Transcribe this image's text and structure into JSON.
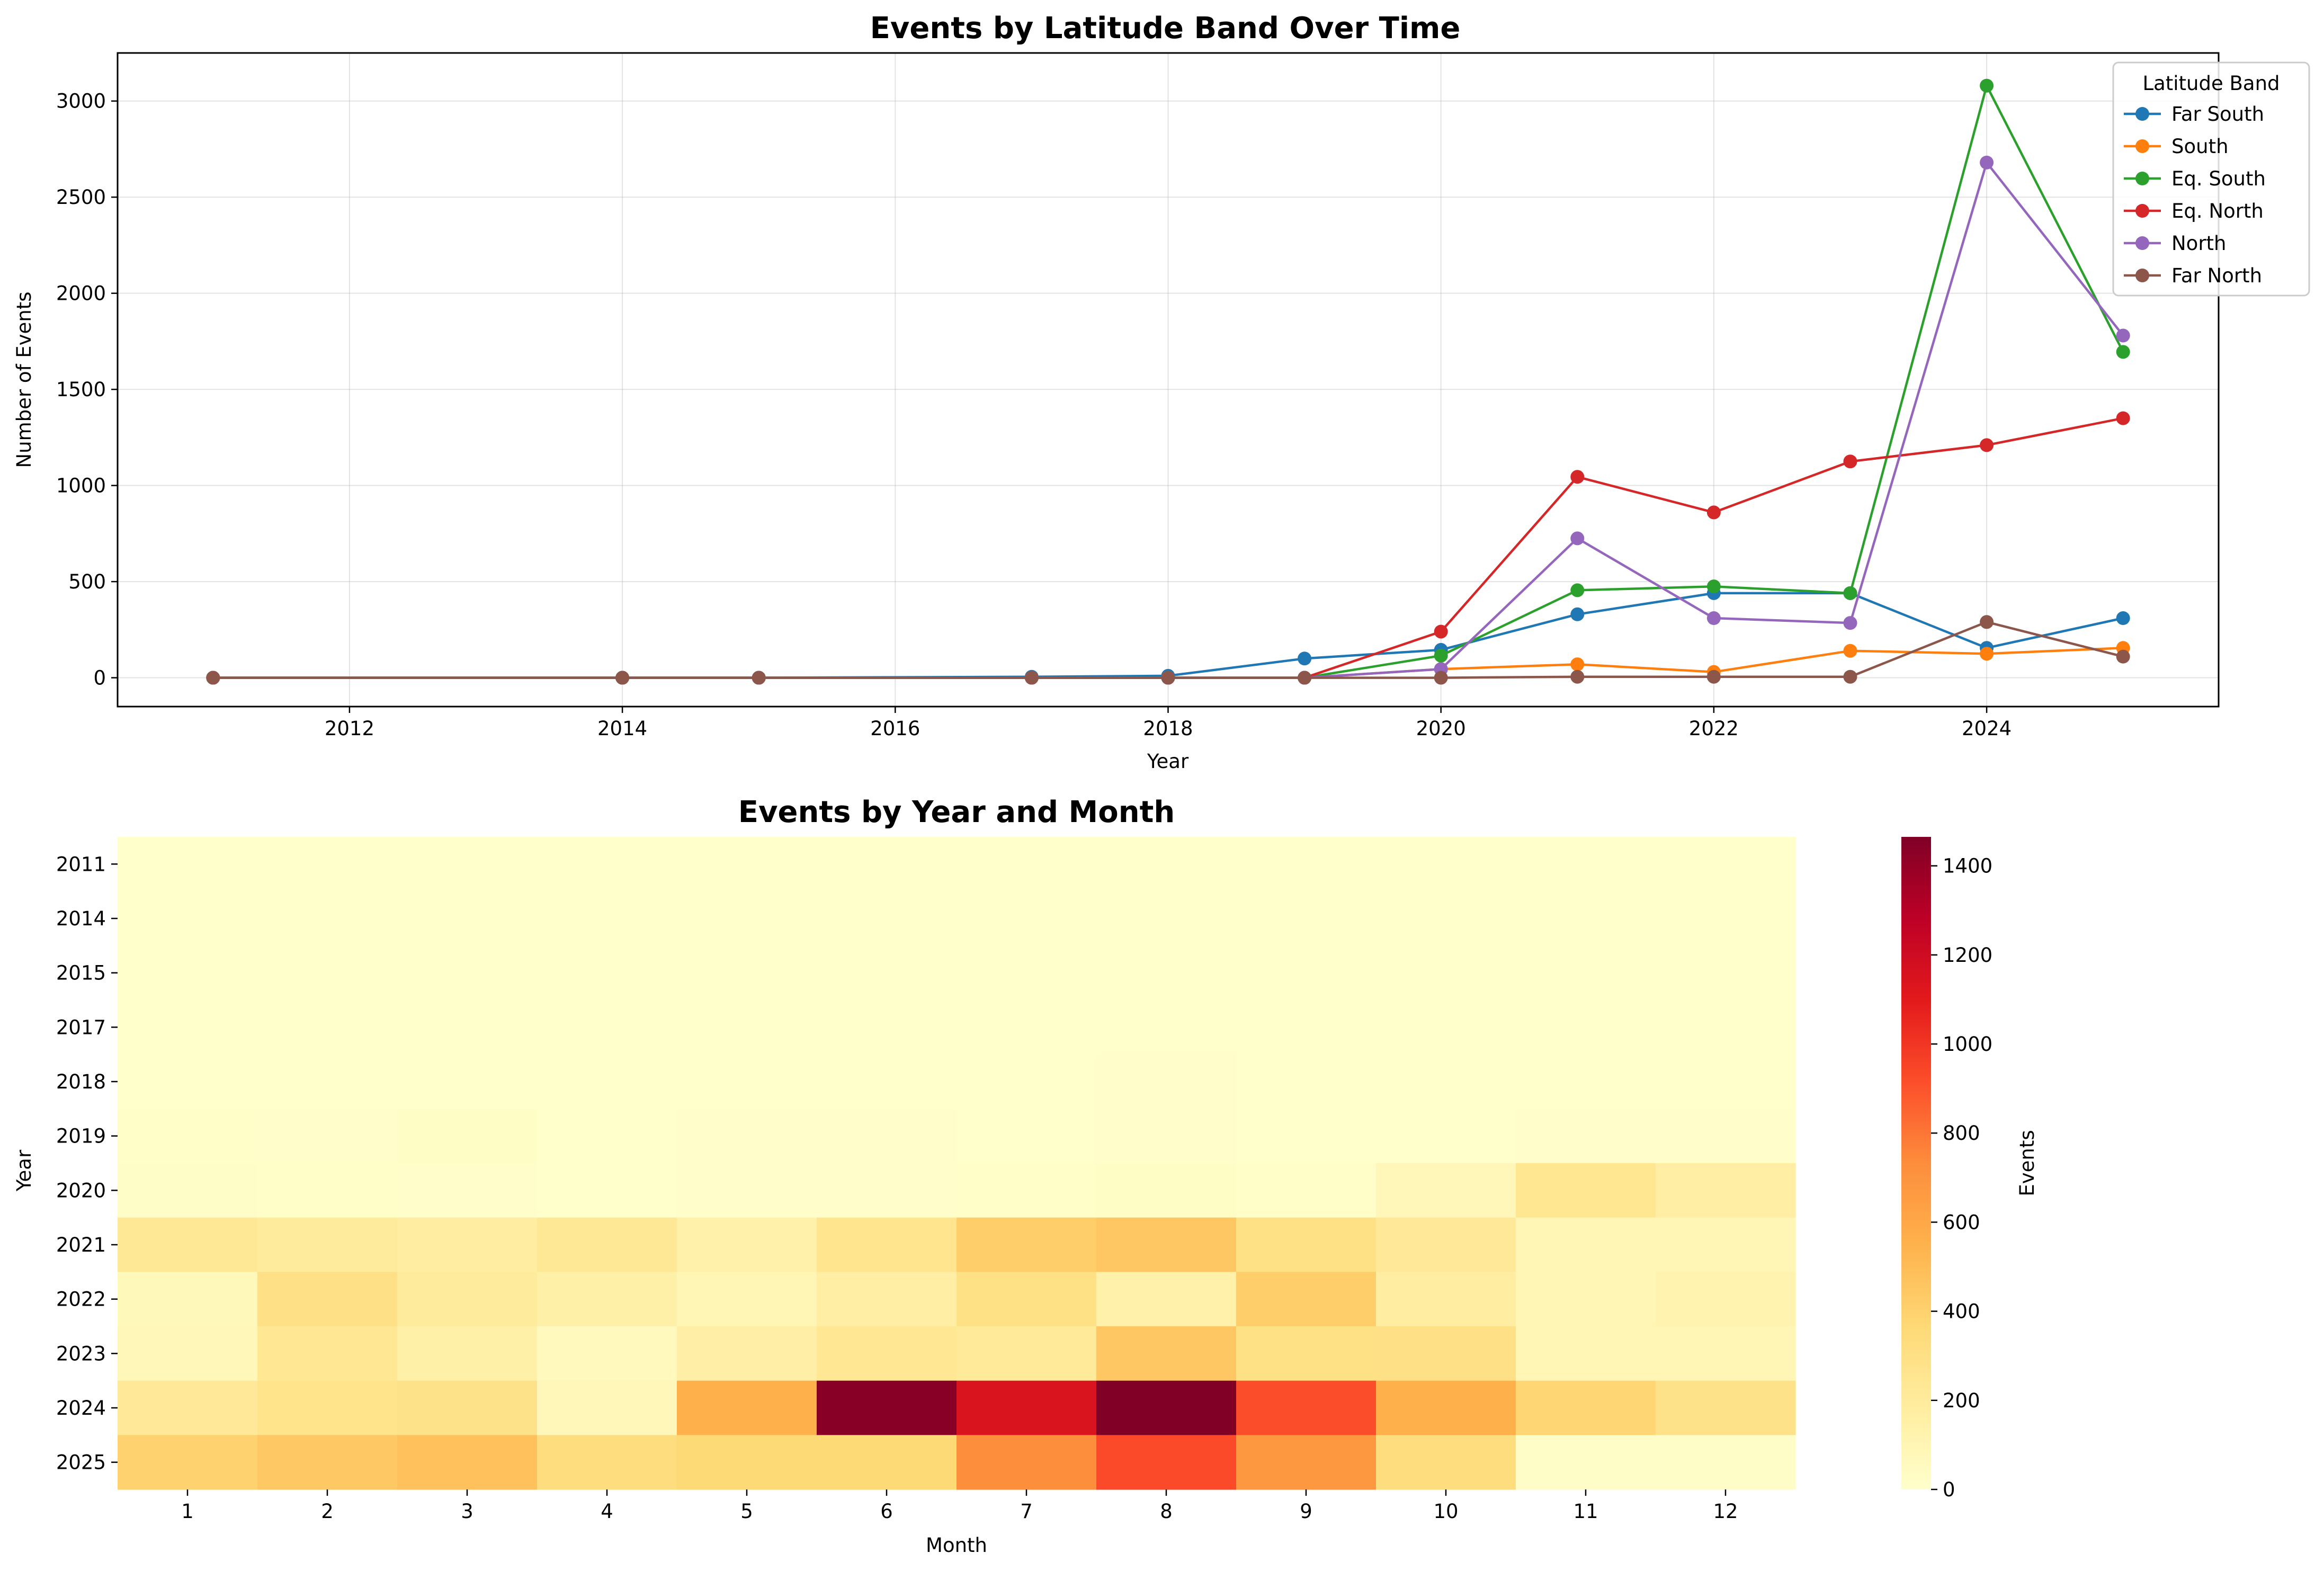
{
  "chart_data": [
    {
      "type": "line",
      "title": "Events by Latitude Band Over Time",
      "xlabel": "Year",
      "ylabel": "Number of Events",
      "xlim": [
        2010.3,
        2025.7
      ],
      "ylim": [
        -150,
        3250
      ],
      "xticks": [
        2012,
        2014,
        2016,
        2018,
        2020,
        2022,
        2024
      ],
      "yticks": [
        0,
        500,
        1000,
        1500,
        2000,
        2500,
        3000
      ],
      "grid": true,
      "legend": {
        "title": "Latitude Band",
        "placement": "top-right"
      },
      "x": [
        2011,
        2014,
        2015,
        2017,
        2018,
        2019,
        2020,
        2021,
        2022,
        2023,
        2024,
        2025
      ],
      "series": [
        {
          "name": "Far South",
          "color": "#1f77b4",
          "values": [
            0,
            0,
            0,
            5,
            10,
            100,
            145,
            330,
            440,
            440,
            155,
            310
          ]
        },
        {
          "name": "South",
          "color": "#ff7f0e",
          "values": [
            0,
            0,
            0,
            0,
            0,
            0,
            45,
            70,
            30,
            140,
            125,
            155
          ]
        },
        {
          "name": "Eq. South",
          "color": "#2ca02c",
          "values": [
            0,
            0,
            0,
            0,
            0,
            0,
            115,
            455,
            475,
            440,
            3080,
            1695
          ]
        },
        {
          "name": "Eq. North",
          "color": "#d62728",
          "values": [
            0,
            0,
            0,
            0,
            0,
            0,
            240,
            1045,
            860,
            1125,
            1210,
            1350
          ]
        },
        {
          "name": "North",
          "color": "#9467bd",
          "values": [
            0,
            0,
            0,
            0,
            0,
            0,
            45,
            725,
            310,
            285,
            2680,
            1780
          ]
        },
        {
          "name": "Far North",
          "color": "#8c564b",
          "values": [
            0,
            0,
            0,
            0,
            0,
            0,
            0,
            5,
            5,
            5,
            290,
            110
          ]
        }
      ]
    },
    {
      "type": "heatmap",
      "title": "Events by Year and Month",
      "xlabel": "Month",
      "ylabel": "Year",
      "x": [
        "1",
        "2",
        "3",
        "4",
        "5",
        "6",
        "7",
        "8",
        "9",
        "10",
        "11",
        "12"
      ],
      "y": [
        "2011",
        "2014",
        "2015",
        "2017",
        "2018",
        "2019",
        "2020",
        "2021",
        "2022",
        "2023",
        "2024",
        "2025"
      ],
      "colorbar": {
        "label": "Events",
        "min": 0,
        "max": 1465,
        "ticks": [
          0,
          200,
          400,
          600,
          800,
          1000,
          1200,
          1400
        ]
      },
      "values": [
        [
          1,
          0,
          0,
          0,
          0,
          0,
          0,
          0,
          0,
          0,
          0,
          0
        ],
        [
          0,
          0,
          0,
          0,
          0,
          0,
          0,
          0,
          0,
          0,
          0,
          0
        ],
        [
          0,
          0,
          0,
          0,
          0,
          0,
          0,
          0,
          0,
          0,
          0,
          0
        ],
        [
          0,
          0,
          0,
          0,
          0,
          0,
          0,
          5,
          0,
          0,
          0,
          0
        ],
        [
          0,
          0,
          0,
          0,
          0,
          0,
          0,
          10,
          0,
          0,
          0,
          0
        ],
        [
          15,
          10,
          25,
          5,
          10,
          10,
          5,
          10,
          5,
          5,
          10,
          10
        ],
        [
          20,
          15,
          10,
          5,
          10,
          10,
          15,
          25,
          15,
          80,
          250,
          170
        ],
        [
          230,
          200,
          180,
          230,
          140,
          260,
          420,
          450,
          300,
          220,
          90,
          100
        ],
        [
          70,
          290,
          200,
          150,
          100,
          170,
          300,
          140,
          420,
          180,
          100,
          120
        ],
        [
          80,
          240,
          150,
          60,
          160,
          240,
          210,
          450,
          300,
          290,
          90,
          100
        ],
        [
          220,
          270,
          280,
          80,
          560,
          1440,
          1140,
          1465,
          920,
          560,
          380,
          280
        ],
        [
          400,
          440,
          480,
          330,
          360,
          360,
          730,
          930,
          680,
          330,
          20,
          20
        ]
      ]
    }
  ]
}
